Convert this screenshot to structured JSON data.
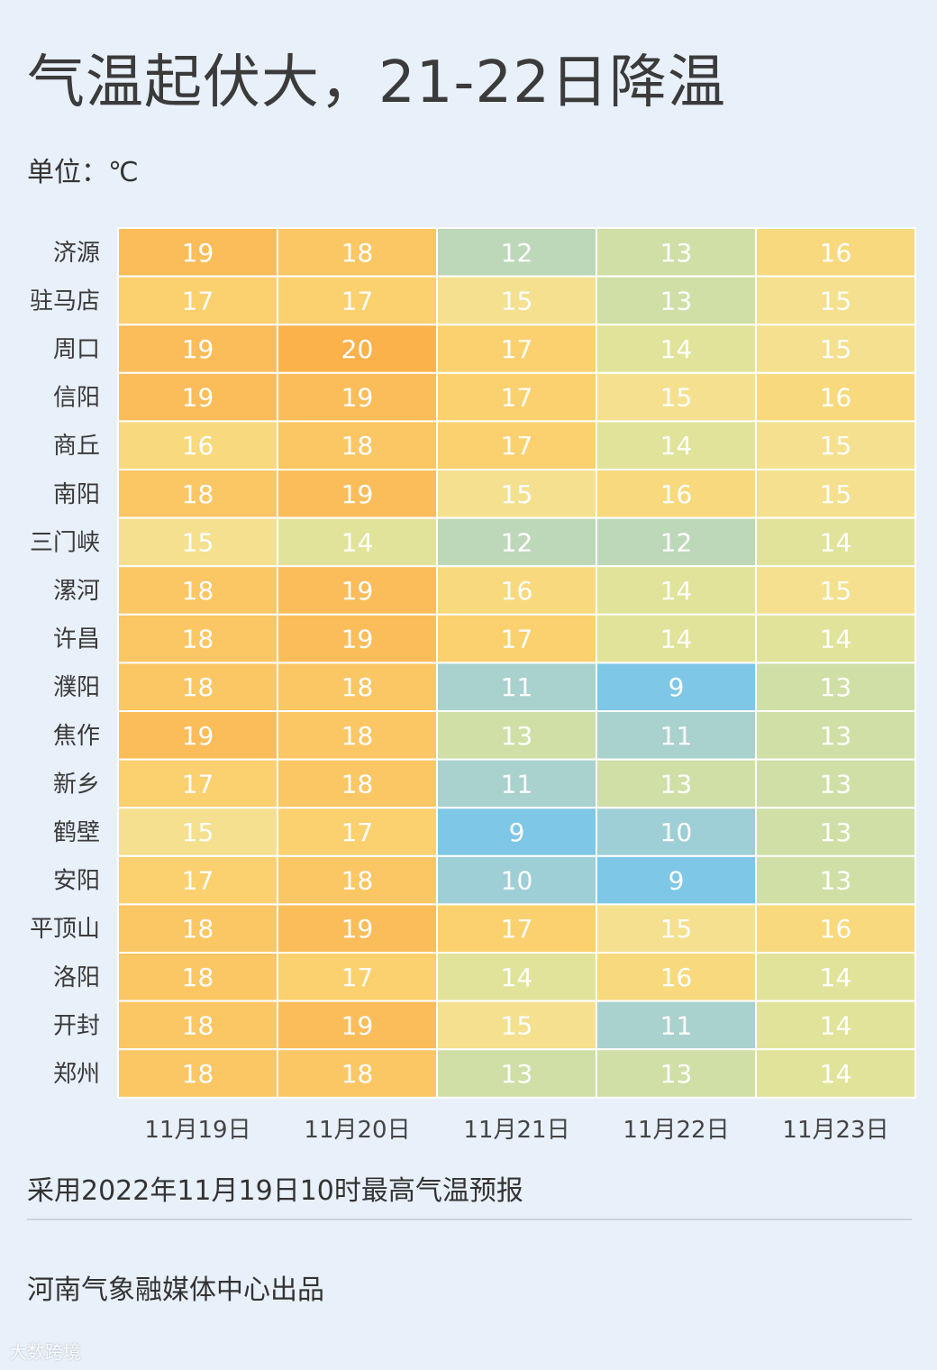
{
  "title": "气温起伏大，21-22日降温",
  "unit_label": "单位：℃",
  "note": "采用2022年11月19日10时最高气温预报",
  "credit": "河南气象融媒体中心出品",
  "watermark": "大数跨境",
  "chart_data": {
    "type": "heatmap",
    "columns": [
      "11月19日",
      "11月20日",
      "11月21日",
      "11月22日",
      "11月23日"
    ],
    "rows": [
      "济源",
      "驻马店",
      "周口",
      "信阳",
      "商丘",
      "南阳",
      "三门峡",
      "漯河",
      "许昌",
      "濮阳",
      "焦作",
      "新乡",
      "鹤壁",
      "安阳",
      "平顶山",
      "洛阳",
      "开封",
      "郑州"
    ],
    "values": [
      [
        19,
        18,
        12,
        13,
        16
      ],
      [
        17,
        17,
        15,
        13,
        15
      ],
      [
        19,
        20,
        17,
        14,
        15
      ],
      [
        19,
        19,
        17,
        15,
        16
      ],
      [
        16,
        18,
        17,
        14,
        15
      ],
      [
        18,
        19,
        15,
        16,
        15
      ],
      [
        15,
        14,
        12,
        12,
        14
      ],
      [
        18,
        19,
        16,
        14,
        15
      ],
      [
        18,
        19,
        17,
        14,
        14
      ],
      [
        18,
        18,
        11,
        9,
        13
      ],
      [
        19,
        18,
        13,
        11,
        13
      ],
      [
        17,
        18,
        11,
        13,
        13
      ],
      [
        15,
        17,
        9,
        10,
        13
      ],
      [
        17,
        18,
        10,
        9,
        13
      ],
      [
        18,
        19,
        17,
        15,
        16
      ],
      [
        18,
        17,
        14,
        16,
        14
      ],
      [
        18,
        19,
        15,
        11,
        14
      ],
      [
        18,
        18,
        13,
        13,
        14
      ]
    ],
    "color_scale": {
      "9": "#7ec7e6",
      "10": "#9fcfd6",
      "11": "#a9d1cd",
      "12": "#bdd8b8",
      "13": "#cfdfa6",
      "14": "#e1e39a",
      "15": "#f4e08f",
      "16": "#f8d97d",
      "17": "#fbd06e",
      "18": "#fbc664",
      "19": "#fbbd5a",
      "20": "#fbb24a"
    }
  }
}
